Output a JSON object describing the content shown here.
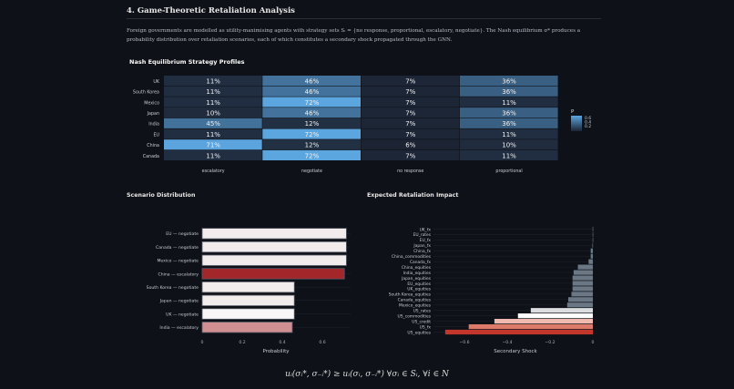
{
  "section_title": "4. Game-Theoretic Retaliation Analysis",
  "intro": "Foreign governments are modelled as utility-maximising agents with strategy sets Sᵢ = {no response, proportional, escalatory, negotiate}. The Nash equilibrium σ* produces a probability distribution over retaliation scenarios, each of which constitutes a secondary shock propagated through the GNN.",
  "formula": "uᵢ(σᵢ*, σ₋ᵢ*) ≥ uᵢ(σᵢ, σ₋ᵢ*)   ∀σᵢ ∈ Sᵢ, ∀i ∈ N",
  "chart_data": [
    {
      "type": "heatmap",
      "title": "Nash Equilibrium Strategy Profiles",
      "x": [
        "escalatory",
        "negotiate",
        "no response",
        "proportional"
      ],
      "y": [
        "UK",
        "South Korea",
        "Mexico",
        "Japan",
        "India",
        "EU",
        "China",
        "Canada"
      ],
      "values": [
        [
          11,
          46,
          7,
          36
        ],
        [
          11,
          46,
          7,
          36
        ],
        [
          11,
          72,
          7,
          11
        ],
        [
          10,
          46,
          7,
          36
        ],
        [
          45,
          12,
          7,
          36
        ],
        [
          11,
          72,
          7,
          11
        ],
        [
          71,
          12,
          6,
          10
        ],
        [
          11,
          72,
          7,
          11
        ]
      ],
      "colorbar": {
        "title": "P",
        "ticks": [
          "0.6",
          "0.4",
          "0.2"
        ]
      }
    },
    {
      "type": "bar",
      "orientation": "horizontal",
      "title": "Scenario Distribution",
      "categories": [
        "EU — negotiate",
        "Canada — negotiate",
        "Mexico — negotiate",
        "China — escalatory",
        "South Korea — negotiate",
        "Japan — negotiate",
        "UK — negotiate",
        "India — escalatory"
      ],
      "values": [
        0.72,
        0.72,
        0.72,
        0.71,
        0.46,
        0.46,
        0.46,
        0.45
      ],
      "colors": [
        "#f2eced",
        "#f2eced",
        "#f2eced",
        "#a3262a",
        "#f2eced",
        "#f2eced",
        "#f8f6f7",
        "#d18f92"
      ],
      "xlabel": "Probability",
      "ticks": [
        "0",
        "0.2",
        "0.4",
        "0.6"
      ],
      "xlim": [
        0,
        0.75
      ]
    },
    {
      "type": "bar",
      "orientation": "horizontal",
      "title": "Expected Retaliation Impact",
      "categories": [
        "UK_fx",
        "EU_rates",
        "EU_fx",
        "Japan_fx",
        "China_fx",
        "China_commodities",
        "Canada_fx",
        "China_equities",
        "India_equities",
        "Japan_equities",
        "EU_equities",
        "UK_equities",
        "South Korea_equities",
        "Canada_equities",
        "Mexico_equities",
        "US_rates",
        "US_commodities",
        "US_credit",
        "US_fx",
        "US_equities"
      ],
      "values": [
        -0.001,
        -0.001,
        -0.001,
        -0.002,
        -0.01,
        -0.01,
        -0.02,
        -0.07,
        -0.09,
        -0.095,
        -0.095,
        -0.095,
        -0.1,
        -0.115,
        -0.12,
        -0.29,
        -0.35,
        -0.46,
        -0.58,
        -0.69
      ],
      "colors": [
        "#6b7785",
        "#6b7785",
        "#6b7785",
        "#6b7785",
        "#6b7785",
        "#6b7785",
        "#6b7785",
        "#6b7785",
        "#6b7785",
        "#6b7785",
        "#6b7785",
        "#6b7785",
        "#6b7785",
        "#6b7785",
        "#6b7785",
        "#dcdde0",
        "#ffffff",
        "#f1b9b0",
        "#dd7a6a",
        "#c3362b"
      ],
      "xlabel": "Secondary Shock",
      "ticks": [
        "−0.6",
        "−0.4",
        "−0.2",
        "0"
      ],
      "xlim": [
        -0.72,
        0
      ]
    }
  ]
}
